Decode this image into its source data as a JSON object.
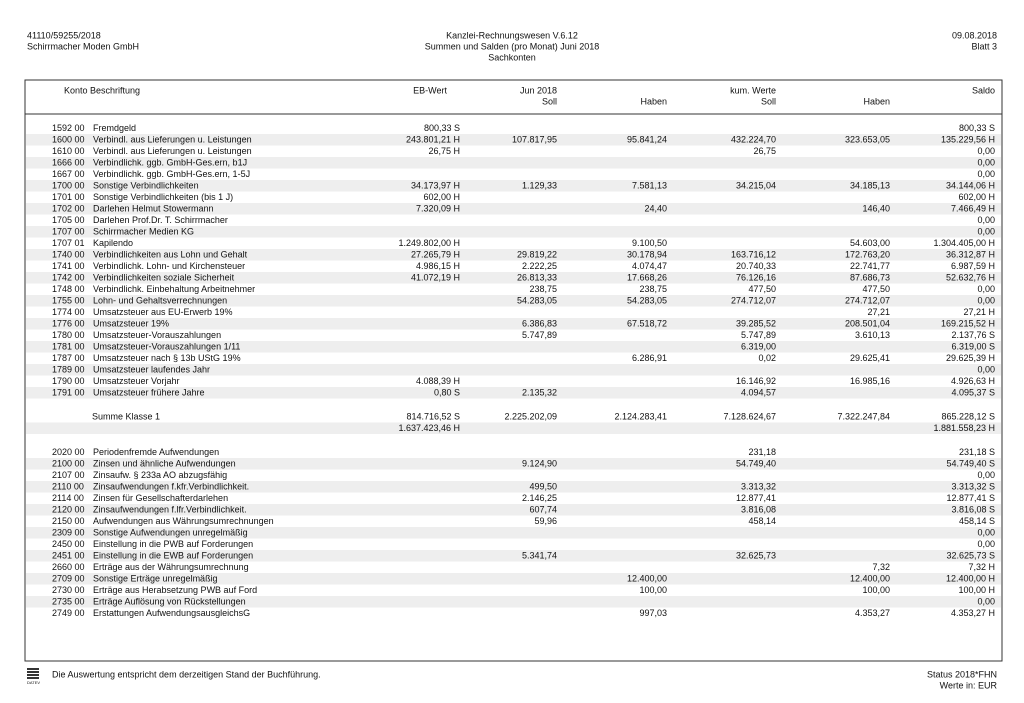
{
  "header": {
    "left": [
      "41110/59255/2018",
      "Schirrmacher Moden GmbH"
    ],
    "center": [
      "Kanzlei-Rechnungswesen V.6.12",
      "Summen und Salden (pro Monat)   Juni 2018",
      "Sachkonten"
    ],
    "right": [
      "09.08.2018",
      "Blatt 3"
    ]
  },
  "table": {
    "columns": {
      "konto": "Konto Beschriftung",
      "eb": "EB-Wert",
      "month": "Jun 2018",
      "month_soll": "Soll",
      "month_haben": "Haben",
      "kum": "kum. Werte",
      "kum_soll": "Soll",
      "kum_haben": "Haben",
      "saldo": "Saldo"
    },
    "groups": [
      [
        {
          "konto": "1592 00",
          "name": "Fremdgeld",
          "cells": [
            "800,33 S",
            null,
            null,
            null,
            null,
            "800,33 S"
          ]
        },
        {
          "konto": "1600 00",
          "name": "Verbindl. aus Lieferungen u. Leistungen",
          "cells": [
            "243.801,21 H",
            "107.817,95",
            "95.841,24",
            "432.224,70",
            "323.653,05",
            "135.229,56 H"
          ]
        },
        {
          "konto": "1610 00",
          "name": "Verbindl. aus Lieferungen u. Leistungen",
          "cells": [
            "26,75 H",
            null,
            null,
            "26,75",
            null,
            "0,00"
          ]
        },
        {
          "konto": "1666 00",
          "name": "Verbindlichk. ggb. GmbH-Ges.ern, b1J",
          "cells": [
            null,
            null,
            null,
            null,
            null,
            "0,00"
          ]
        },
        {
          "konto": "1667 00",
          "name": "Verbindlichk. ggb. GmbH-Ges.ern, 1-5J",
          "cells": [
            null,
            null,
            null,
            null,
            null,
            "0,00"
          ]
        },
        {
          "konto": "1700 00",
          "name": "Sonstige Verbindlichkeiten",
          "cells": [
            "34.173,97 H",
            "1.129,33",
            "7.581,13",
            "34.215,04",
            "34.185,13",
            "34.144,06 H"
          ]
        },
        {
          "konto": "1701 00",
          "name": "Sonstige Verbindlichkeiten (bis 1 J)",
          "cells": [
            "602,00 H",
            null,
            null,
            null,
            null,
            "602,00 H"
          ]
        },
        {
          "konto": "1702 00",
          "name": "Darlehen Helmut Stowermann",
          "cells": [
            "7.320,09 H",
            null,
            "24,40",
            null,
            "146,40",
            "7.466,49 H"
          ]
        },
        {
          "konto": "1705 00",
          "name": "Darlehen Prof.Dr. T. Schirrmacher",
          "cells": [
            null,
            null,
            null,
            null,
            null,
            "0,00"
          ]
        },
        {
          "konto": "1707 00",
          "name": "Schirrmacher Medien KG",
          "cells": [
            null,
            null,
            null,
            null,
            null,
            "0,00"
          ]
        },
        {
          "konto": "1707 01",
          "name": "Kapilendo",
          "cells": [
            "1.249.802,00 H",
            null,
            "9.100,50",
            null,
            "54.603,00",
            "1.304.405,00 H"
          ]
        },
        {
          "konto": "1740 00",
          "name": "Verbindlichkeiten aus Lohn und Gehalt",
          "cells": [
            "27.265,79 H",
            "29.819,22",
            "30.178,94",
            "163.716,12",
            "172.763,20",
            "36.312,87 H"
          ]
        },
        {
          "konto": "1741 00",
          "name": "Verbindlichk. Lohn- und Kirchensteuer",
          "cells": [
            "4.986,15 H",
            "2.222,25",
            "4.074,47",
            "20.740,33",
            "22.741,77",
            "6.987,59 H"
          ]
        },
        {
          "konto": "1742 00",
          "name": "Verbindlichkeiten soziale Sicherheit",
          "cells": [
            "41.072,19 H",
            "26.813,33",
            "17.668,26",
            "76.126,16",
            "87.686,73",
            "52.632,76 H"
          ]
        },
        {
          "konto": "1748 00",
          "name": "Verbindlichk. Einbehaltung Arbeitnehmer",
          "cells": [
            null,
            "238,75",
            "238,75",
            "477,50",
            "477,50",
            "0,00"
          ]
        },
        {
          "konto": "1755 00",
          "name": "Lohn- und Gehaltsverrechnungen",
          "cells": [
            null,
            "54.283,05",
            "54.283,05",
            "274.712,07",
            "274.712,07",
            "0,00"
          ]
        },
        {
          "konto": "1774 00",
          "name": "Umsatzsteuer aus EU-Erwerb 19%",
          "cells": [
            null,
            null,
            null,
            null,
            "27,21",
            "27,21 H"
          ]
        },
        {
          "konto": "1776 00",
          "name": "Umsatzsteuer 19%",
          "cells": [
            null,
            "6.386,83",
            "67.518,72",
            "39.285,52",
            "208.501,04",
            "169.215,52 H"
          ]
        },
        {
          "konto": "1780 00",
          "name": "Umsatzsteuer-Vorauszahlungen",
          "cells": [
            null,
            "5.747,89",
            null,
            "5.747,89",
            "3.610,13",
            "2.137,76 S"
          ]
        },
        {
          "konto": "1781 00",
          "name": "Umsatzsteuer-Vorauszahlungen 1/11",
          "cells": [
            null,
            null,
            null,
            "6.319,00",
            null,
            "6.319,00 S"
          ]
        },
        {
          "konto": "1787 00",
          "name": "Umsatzsteuer nach § 13b UStG 19%",
          "cells": [
            null,
            null,
            "6.286,91",
            "0,02",
            "29.625,41",
            "29.625,39 H"
          ]
        },
        {
          "konto": "1789 00",
          "name": "Umsatzsteuer laufendes Jahr",
          "cells": [
            null,
            null,
            null,
            null,
            null,
            "0,00"
          ]
        },
        {
          "konto": "1790 00",
          "name": "Umsatzsteuer Vorjahr",
          "cells": [
            "4.088,39 H",
            null,
            null,
            "16.146,92",
            "16.985,16",
            "4.926,63 H"
          ]
        },
        {
          "konto": "1791 00",
          "name": "Umsatzsteuer frühere Jahre",
          "cells": [
            "0,80 S",
            "2.135,32",
            null,
            "4.094,57",
            null,
            "4.095,37 S"
          ]
        }
      ],
      [
        {
          "name": "Summe Klasse 1",
          "cells": [
            "814.716,52 S",
            "2.225.202,09",
            "2.124.283,41",
            "7.128.624,67",
            "7.322.247,84",
            "865.228,12 S"
          ]
        },
        {
          "cells": [
            "1.637.423,46 H",
            null,
            null,
            null,
            null,
            "1.881.558,23 H"
          ]
        }
      ],
      [
        {
          "konto": "2020 00",
          "name": "Periodenfremde Aufwendungen",
          "cells": [
            null,
            null,
            null,
            "231,18",
            null,
            "231,18 S"
          ]
        },
        {
          "konto": "2100 00",
          "name": "Zinsen und ähnliche Aufwendungen",
          "cells": [
            null,
            "9.124,90",
            null,
            "54.749,40",
            null,
            "54.749,40 S"
          ]
        },
        {
          "konto": "2107 00",
          "name": "Zinsaufw. § 233a AO abzugsfähig",
          "cells": [
            null,
            null,
            null,
            null,
            null,
            "0,00"
          ]
        },
        {
          "konto": "2110 00",
          "name": "Zinsaufwendungen f.kfr.Verbindlichkeit.",
          "cells": [
            null,
            "499,50",
            null,
            "3.313,32",
            null,
            "3.313,32 S"
          ]
        },
        {
          "konto": "2114 00",
          "name": "Zinsen für Gesellschafterdarlehen",
          "cells": [
            null,
            "2.146,25",
            null,
            "12.877,41",
            null,
            "12.877,41 S"
          ]
        },
        {
          "konto": "2120 00",
          "name": "Zinsaufwendungen f.lfr.Verbindlichkeit.",
          "cells": [
            null,
            "607,74",
            null,
            "3.816,08",
            null,
            "3.816,08 S"
          ]
        },
        {
          "konto": "2150 00",
          "name": "Aufwendungen aus Währungsumrechnungen",
          "cells": [
            null,
            "59,96",
            null,
            "458,14",
            null,
            "458,14 S"
          ]
        },
        {
          "konto": "2309 00",
          "name": "Sonstige Aufwendungen unregelmäßig",
          "cells": [
            null,
            null,
            null,
            null,
            null,
            "0,00"
          ]
        },
        {
          "konto": "2450 00",
          "name": "Einstellung in die PWB auf Forderungen",
          "cells": [
            null,
            null,
            null,
            null,
            null,
            "0,00"
          ]
        },
        {
          "konto": "2451 00",
          "name": "Einstellung in die EWB auf Forderungen",
          "cells": [
            null,
            "5.341,74",
            null,
            "32.625,73",
            null,
            "32.625,73 S"
          ]
        },
        {
          "konto": "2660 00",
          "name": "Erträge aus der Währungsumrechnung",
          "cells": [
            null,
            null,
            null,
            null,
            "7,32",
            "7,32 H"
          ]
        },
        {
          "konto": "2709 00",
          "name": "Sonstige Erträge unregelmäßig",
          "cells": [
            null,
            null,
            "12.400,00",
            null,
            "12.400,00",
            "12.400,00 H"
          ]
        },
        {
          "konto": "2730 00",
          "name": "Erträge aus Herabsetzung PWB auf Ford",
          "cells": [
            null,
            null,
            "100,00",
            null,
            "100,00",
            "100,00 H"
          ]
        },
        {
          "konto": "2735 00",
          "name": "Erträge Auflösung von Rückstellungen",
          "cells": [
            null,
            null,
            null,
            null,
            null,
            "0,00"
          ]
        },
        {
          "konto": "2749 00",
          "name": "Erstattungen AufwendungsausgleichsG",
          "cells": [
            null,
            null,
            "997,03",
            null,
            "4.353,27",
            "4.353,27 H"
          ]
        }
      ]
    ]
  },
  "footer": {
    "logo": "DATEV",
    "note": "Die Auswertung entspricht dem derzeitigen Stand der Buchführung.",
    "status": "Status 2018*FHN",
    "units": "Werte in: EUR"
  }
}
